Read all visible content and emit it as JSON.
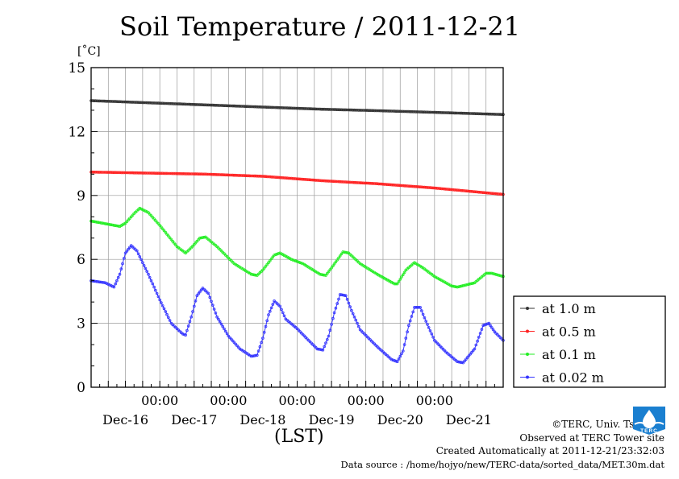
{
  "chart_data": {
    "type": "line",
    "title": "Soil Temperature / 2011-12-21",
    "ylabel": "[˚C]",
    "xlabel": "(LST)",
    "ylim": [
      0,
      15
    ],
    "yticks": [
      "0",
      "3",
      "6",
      "9",
      "12",
      "15"
    ],
    "xlim_hours": [
      0,
      144
    ],
    "time_ticks": [
      "00:00",
      "00:00",
      "00:00",
      "00:00",
      "00:00"
    ],
    "day_labels": [
      "Dec-16",
      "Dec-17",
      "Dec-18",
      "Dec-19",
      "Dec-20",
      "Dec-21"
    ],
    "grid": true,
    "legend_position": "right",
    "series": [
      {
        "name": "at 1.0 m",
        "color": "#333333",
        "points": [
          [
            0,
            13.45
          ],
          [
            20,
            13.35
          ],
          [
            40,
            13.25
          ],
          [
            60,
            13.15
          ],
          [
            80,
            13.05
          ],
          [
            100,
            12.98
          ],
          [
            120,
            12.9
          ],
          [
            144,
            12.8
          ]
        ]
      },
      {
        "name": "at 0.5 m",
        "color": "#ff2222",
        "points": [
          [
            0,
            10.1
          ],
          [
            20,
            10.05
          ],
          [
            40,
            10.0
          ],
          [
            60,
            9.9
          ],
          [
            70,
            9.8
          ],
          [
            80,
            9.7
          ],
          [
            100,
            9.55
          ],
          [
            120,
            9.35
          ],
          [
            144,
            9.05
          ]
        ]
      },
      {
        "name": "at 0.1 m",
        "color": "#22ee22",
        "points": [
          [
            0,
            7.8
          ],
          [
            8,
            7.6
          ],
          [
            10,
            7.55
          ],
          [
            12,
            7.7
          ],
          [
            15,
            8.15
          ],
          [
            17,
            8.4
          ],
          [
            20,
            8.2
          ],
          [
            24,
            7.6
          ],
          [
            30,
            6.6
          ],
          [
            33,
            6.3
          ],
          [
            35,
            6.55
          ],
          [
            38,
            7.0
          ],
          [
            40,
            7.05
          ],
          [
            44,
            6.6
          ],
          [
            50,
            5.8
          ],
          [
            56,
            5.3
          ],
          [
            58,
            5.25
          ],
          [
            60,
            5.5
          ],
          [
            64,
            6.2
          ],
          [
            66,
            6.3
          ],
          [
            70,
            6.0
          ],
          [
            74,
            5.8
          ],
          [
            80,
            5.3
          ],
          [
            82,
            5.25
          ],
          [
            84,
            5.6
          ],
          [
            88,
            6.35
          ],
          [
            90,
            6.3
          ],
          [
            94,
            5.8
          ],
          [
            100,
            5.3
          ],
          [
            106,
            4.85
          ],
          [
            107,
            4.85
          ],
          [
            110,
            5.5
          ],
          [
            113,
            5.85
          ],
          [
            116,
            5.6
          ],
          [
            120,
            5.2
          ],
          [
            126,
            4.75
          ],
          [
            128,
            4.7
          ],
          [
            134,
            4.9
          ],
          [
            138,
            5.35
          ],
          [
            140,
            5.35
          ],
          [
            144,
            5.2
          ]
        ]
      },
      {
        "name": "at 0.02 m",
        "color": "#3333ff",
        "points": [
          [
            0,
            5.0
          ],
          [
            5,
            4.9
          ],
          [
            8,
            4.7
          ],
          [
            10,
            5.3
          ],
          [
            12,
            6.3
          ],
          [
            14,
            6.65
          ],
          [
            16,
            6.4
          ],
          [
            20,
            5.3
          ],
          [
            24,
            4.1
          ],
          [
            28,
            3.0
          ],
          [
            32,
            2.5
          ],
          [
            33,
            2.45
          ],
          [
            35,
            3.3
          ],
          [
            37,
            4.3
          ],
          [
            39,
            4.65
          ],
          [
            41,
            4.4
          ],
          [
            44,
            3.3
          ],
          [
            48,
            2.4
          ],
          [
            52,
            1.8
          ],
          [
            56,
            1.45
          ],
          [
            58,
            1.5
          ],
          [
            60,
            2.3
          ],
          [
            62,
            3.4
          ],
          [
            64,
            4.05
          ],
          [
            66,
            3.8
          ],
          [
            68,
            3.2
          ],
          [
            72,
            2.75
          ],
          [
            76,
            2.2
          ],
          [
            79,
            1.8
          ],
          [
            81,
            1.75
          ],
          [
            83,
            2.4
          ],
          [
            85,
            3.5
          ],
          [
            87,
            4.35
          ],
          [
            89,
            4.3
          ],
          [
            91,
            3.6
          ],
          [
            94,
            2.7
          ],
          [
            100,
            1.9
          ],
          [
            105,
            1.3
          ],
          [
            107,
            1.2
          ],
          [
            109,
            1.7
          ],
          [
            111,
            2.9
          ],
          [
            113,
            3.75
          ],
          [
            115,
            3.75
          ],
          [
            117,
            3.1
          ],
          [
            120,
            2.2
          ],
          [
            124,
            1.65
          ],
          [
            128,
            1.2
          ],
          [
            130,
            1.15
          ],
          [
            134,
            1.8
          ],
          [
            137,
            2.9
          ],
          [
            139,
            3.0
          ],
          [
            141,
            2.6
          ],
          [
            144,
            2.2
          ]
        ]
      }
    ]
  },
  "credits": {
    "copyright": "©TERC, Univ. Tsukuba",
    "observed": "Observed at TERC Tower site",
    "created": "Created Automatically at 2011-12-21/23:32:03",
    "source": "Data source : /home/hojyo/new/TERC-data/sorted_data/MET.30m.dat"
  },
  "logo": {
    "text": "TERC",
    "color": "#1a7fd0"
  }
}
